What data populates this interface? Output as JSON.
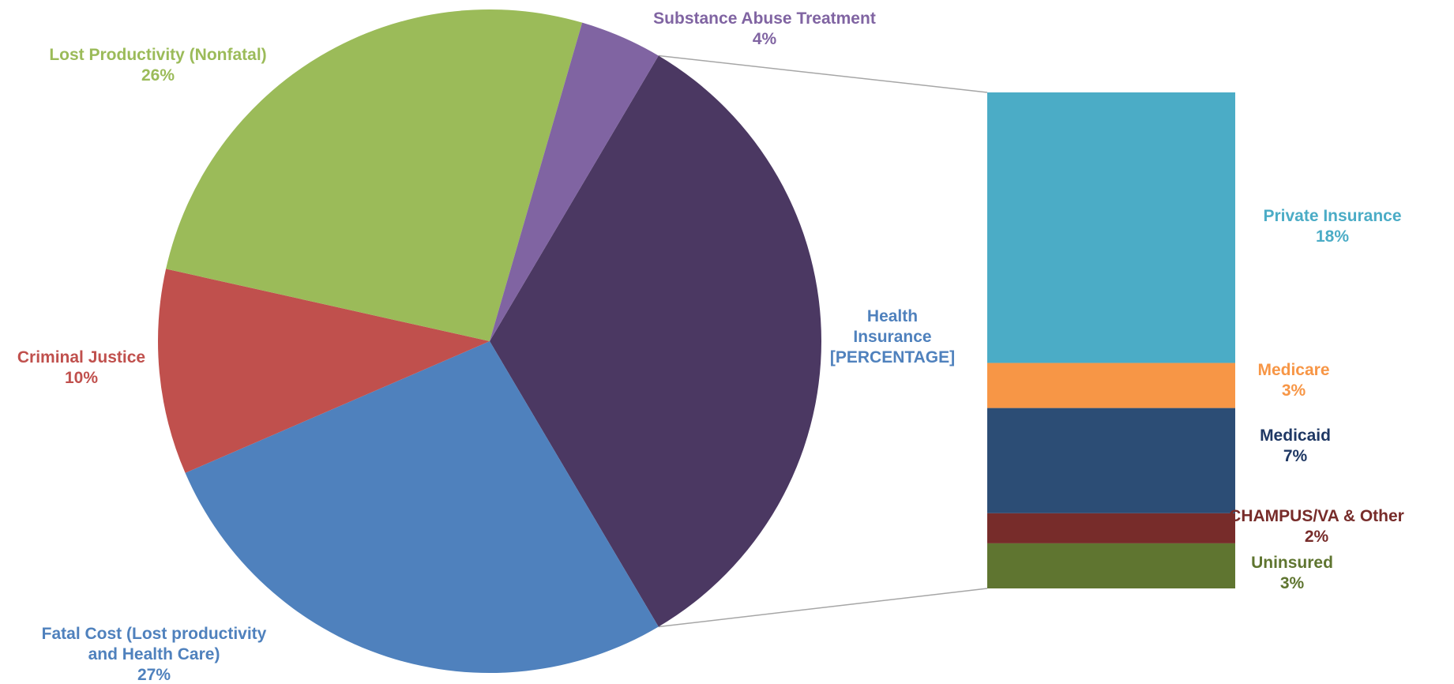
{
  "chart_data": {
    "type": "pie",
    "title": "",
    "slices": [
      {
        "label": "Health Insurance",
        "value_text": "[PERCENTAGE]",
        "value": 33,
        "color": "#4b3862"
      },
      {
        "label": "Fatal Cost (Lost productivity and Health Care)",
        "value_text": "27%",
        "value": 27,
        "color": "#4f81bd"
      },
      {
        "label": "Criminal Justice",
        "value_text": "10%",
        "value": 10,
        "color": "#c0504d"
      },
      {
        "label": "Lost Productivity (Nonfatal)",
        "value_text": "26%",
        "value": 26,
        "color": "#9bbb59"
      },
      {
        "label": "Substance Abuse Treatment",
        "value_text": "4%",
        "value": 4,
        "color": "#8064a2"
      }
    ],
    "breakdown": {
      "of": "Health Insurance",
      "type": "stacked-bar",
      "segments": [
        {
          "label": "Private Insurance",
          "value_text": "18%",
          "value": 18,
          "color": "#4bacc6"
        },
        {
          "label": "Medicare",
          "value_text": "3%",
          "value": 3,
          "color": "#f79646"
        },
        {
          "label": "Medicaid",
          "value_text": "7%",
          "value": 7,
          "color": "#2c4d75"
        },
        {
          "label": "CHAMPUS/VA & Other",
          "value_text": "2%",
          "value": 2,
          "color": "#772c2a"
        },
        {
          "label": "Uninsured",
          "value_text": "3%",
          "value": 3,
          "color": "#5f7530"
        }
      ]
    },
    "label_colors": {
      "Health Insurance": "#4f81bd",
      "Fatal Cost (Lost productivity and Health Care)": "#4f81bd",
      "Criminal Justice": "#c0504d",
      "Lost Productivity (Nonfatal)": "#9bbb59",
      "Substance Abuse Treatment": "#8064a2",
      "Private Insurance": "#4bacc6",
      "Medicare": "#f79646",
      "Medicaid": "#1f3864",
      "CHAMPUS/VA & Other": "#772c2a",
      "Uninsured": "#5f7530"
    }
  }
}
